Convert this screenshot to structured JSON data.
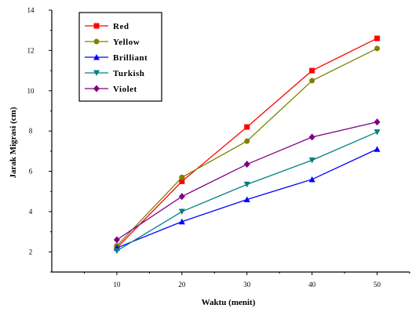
{
  "chart_data": {
    "type": "line",
    "title": "",
    "xlabel": "Waktu (menit)",
    "ylabel": "Jarak Migrasi (cm)",
    "x": [
      10,
      20,
      30,
      40,
      50
    ],
    "xticks": [
      "10",
      "20",
      "30",
      "40",
      "50"
    ],
    "yticks": [
      "2",
      "4",
      "6",
      "8",
      "10",
      "12",
      "14"
    ],
    "xlim": [
      0,
      55
    ],
    "ylim": [
      1,
      14
    ],
    "grid": false,
    "legend_position": "top-left",
    "series": [
      {
        "name": "Red",
        "color": "#ff0000",
        "marker": "square",
        "values": [
          2.2,
          5.5,
          8.2,
          11.0,
          12.6
        ]
      },
      {
        "name": "Yellow",
        "color": "#808000",
        "marker": "circle",
        "values": [
          2.3,
          5.7,
          7.5,
          10.5,
          12.1
        ]
      },
      {
        "name": "Brilliant",
        "color": "#0000ff",
        "marker": "triangle-up",
        "values": [
          2.2,
          3.5,
          4.6,
          5.6,
          7.1
        ]
      },
      {
        "name": "Turkish",
        "color": "#008080",
        "marker": "triangle-down",
        "values": [
          2.05,
          4.0,
          5.35,
          6.55,
          7.95
        ]
      },
      {
        "name": "Violet",
        "color": "#800080",
        "marker": "diamond",
        "values": [
          2.6,
          4.75,
          6.35,
          7.7,
          8.45
        ]
      }
    ]
  }
}
